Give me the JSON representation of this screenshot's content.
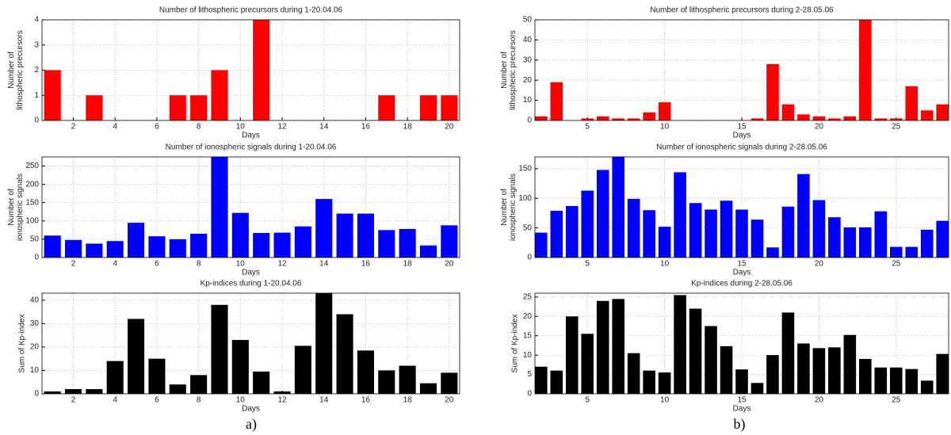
{
  "chart_data": [
    {
      "type": "bar",
      "title": "Number of lithospheric precursors during 1-20.04.06",
      "ylabel": [
        "Number of",
        "lithospheric precursors"
      ],
      "xlabel": "Days",
      "x": [
        1,
        2,
        3,
        4,
        5,
        6,
        7,
        8,
        9,
        10,
        11,
        12,
        13,
        14,
        15,
        16,
        17,
        18,
        19,
        20
      ],
      "values": [
        2,
        0,
        1,
        0,
        0,
        0,
        1,
        1,
        2,
        0,
        4,
        0,
        0,
        0,
        0,
        0,
        1,
        0,
        1,
        1
      ],
      "color": "#ff0000",
      "xlim": [
        0.5,
        20.5
      ],
      "xticks": [
        2,
        4,
        6,
        8,
        10,
        12,
        14,
        16,
        18,
        20
      ],
      "ylim": [
        0,
        4
      ],
      "yticks": [
        0,
        1,
        2,
        3,
        4
      ],
      "grid": true
    },
    {
      "type": "bar",
      "title": "Number of lithospheric precursors during 2-28.05.06",
      "ylabel": [
        "Number of",
        "lithospheric precursors"
      ],
      "xlabel": "Days",
      "x": [
        2,
        3,
        4,
        5,
        6,
        7,
        8,
        9,
        10,
        11,
        12,
        13,
        14,
        15,
        16,
        17,
        18,
        19,
        20,
        21,
        22,
        23,
        24,
        25,
        26,
        27,
        28
      ],
      "values": [
        2,
        19,
        0,
        1,
        2,
        1,
        1,
        4,
        9,
        0,
        0,
        0,
        0,
        0,
        1,
        28,
        8,
        3,
        2,
        1,
        2,
        51,
        1,
        1,
        17,
        5,
        8
      ],
      "color": "#ff0000",
      "xlim": [
        1.6,
        28.4
      ],
      "xticks": [
        5,
        10,
        15,
        20,
        25
      ],
      "ylim": [
        0,
        50
      ],
      "yticks": [
        0,
        10,
        20,
        30,
        40,
        50
      ],
      "grid": true
    },
    {
      "type": "bar",
      "title": "Number of ionospheric signals during 1-20.04.06",
      "ylabel": [
        "Number of",
        "ionospheric signals"
      ],
      "xlabel": "Days",
      "x": [
        1,
        2,
        3,
        4,
        5,
        6,
        7,
        8,
        9,
        10,
        11,
        12,
        13,
        14,
        15,
        16,
        17,
        18,
        19,
        20
      ],
      "values": [
        60,
        48,
        38,
        45,
        95,
        58,
        50,
        65,
        275,
        122,
        67,
        68,
        85,
        160,
        120,
        120,
        75,
        78,
        33,
        88
      ],
      "color": "#0000ff",
      "xlim": [
        0.5,
        20.5
      ],
      "xticks": [
        2,
        4,
        6,
        8,
        10,
        12,
        14,
        16,
        18,
        20
      ],
      "ylim": [
        0,
        275
      ],
      "yticks": [
        0,
        50,
        100,
        150,
        200,
        250
      ],
      "grid": true
    },
    {
      "type": "bar",
      "title": "Number of ionospheric signals during 2-28.05.06",
      "ylabel": [
        "Number of",
        "ionospheric signals"
      ],
      "xlabel": "Days",
      "x": [
        2,
        3,
        4,
        5,
        6,
        7,
        8,
        9,
        10,
        11,
        12,
        13,
        14,
        15,
        16,
        17,
        18,
        19,
        20,
        21,
        22,
        23,
        24,
        25,
        26,
        27,
        28
      ],
      "values": [
        42,
        79,
        87,
        113,
        148,
        170,
        99,
        80,
        52,
        144,
        92,
        81,
        96,
        81,
        64,
        17,
        86,
        141,
        97,
        68,
        51,
        51,
        78,
        18,
        18,
        47,
        62
      ],
      "color": "#0000ff",
      "xlim": [
        1.6,
        28.4
      ],
      "xticks": [
        5,
        10,
        15,
        20,
        25
      ],
      "ylim": [
        0,
        170
      ],
      "yticks": [
        0,
        50,
        100,
        150
      ],
      "grid": true
    },
    {
      "type": "bar",
      "title": "Kp-indices during 1-20.04.06",
      "ylabel": [
        "Sum of Kp-index"
      ],
      "xlabel": "Days",
      "x": [
        1,
        2,
        3,
        4,
        5,
        6,
        7,
        8,
        9,
        10,
        11,
        12,
        13,
        14,
        15,
        16,
        17,
        18,
        19,
        20
      ],
      "values": [
        1,
        2,
        2,
        14,
        32,
        15,
        4,
        8,
        38,
        23,
        9.5,
        1,
        20.5,
        43,
        34,
        18.5,
        10,
        12,
        4.5,
        9
      ],
      "color": "#000000",
      "xlim": [
        0.5,
        20.5
      ],
      "xticks": [
        2,
        4,
        6,
        8,
        10,
        12,
        14,
        16,
        18,
        20
      ],
      "ylim": [
        0,
        43
      ],
      "yticks": [
        0,
        10,
        20,
        30,
        40
      ],
      "grid": true
    },
    {
      "type": "bar",
      "title": "Kp-indices during 2-28.05.06",
      "ylabel": [
        "Sum of Kp-index"
      ],
      "xlabel": "Days",
      "x": [
        2,
        3,
        4,
        5,
        6,
        7,
        8,
        9,
        10,
        11,
        12,
        13,
        14,
        15,
        16,
        17,
        18,
        19,
        20,
        21,
        22,
        23,
        24,
        25,
        26,
        27,
        28
      ],
      "values": [
        7,
        6,
        20,
        15.5,
        24,
        24.5,
        10.5,
        6,
        5.5,
        25.5,
        22,
        17.5,
        12.3,
        6.3,
        2.8,
        10,
        21,
        13,
        11.8,
        12,
        15.2,
        9,
        6.8,
        6.8,
        6.4,
        3.4,
        10.3
      ],
      "color": "#000000",
      "xlim": [
        1.6,
        28.4
      ],
      "xticks": [
        5,
        10,
        15,
        20,
        25
      ],
      "ylim": [
        0,
        26
      ],
      "yticks": [
        0,
        5,
        10,
        15,
        20,
        25
      ],
      "grid": true
    }
  ],
  "captions": [
    "a)",
    "b)"
  ]
}
